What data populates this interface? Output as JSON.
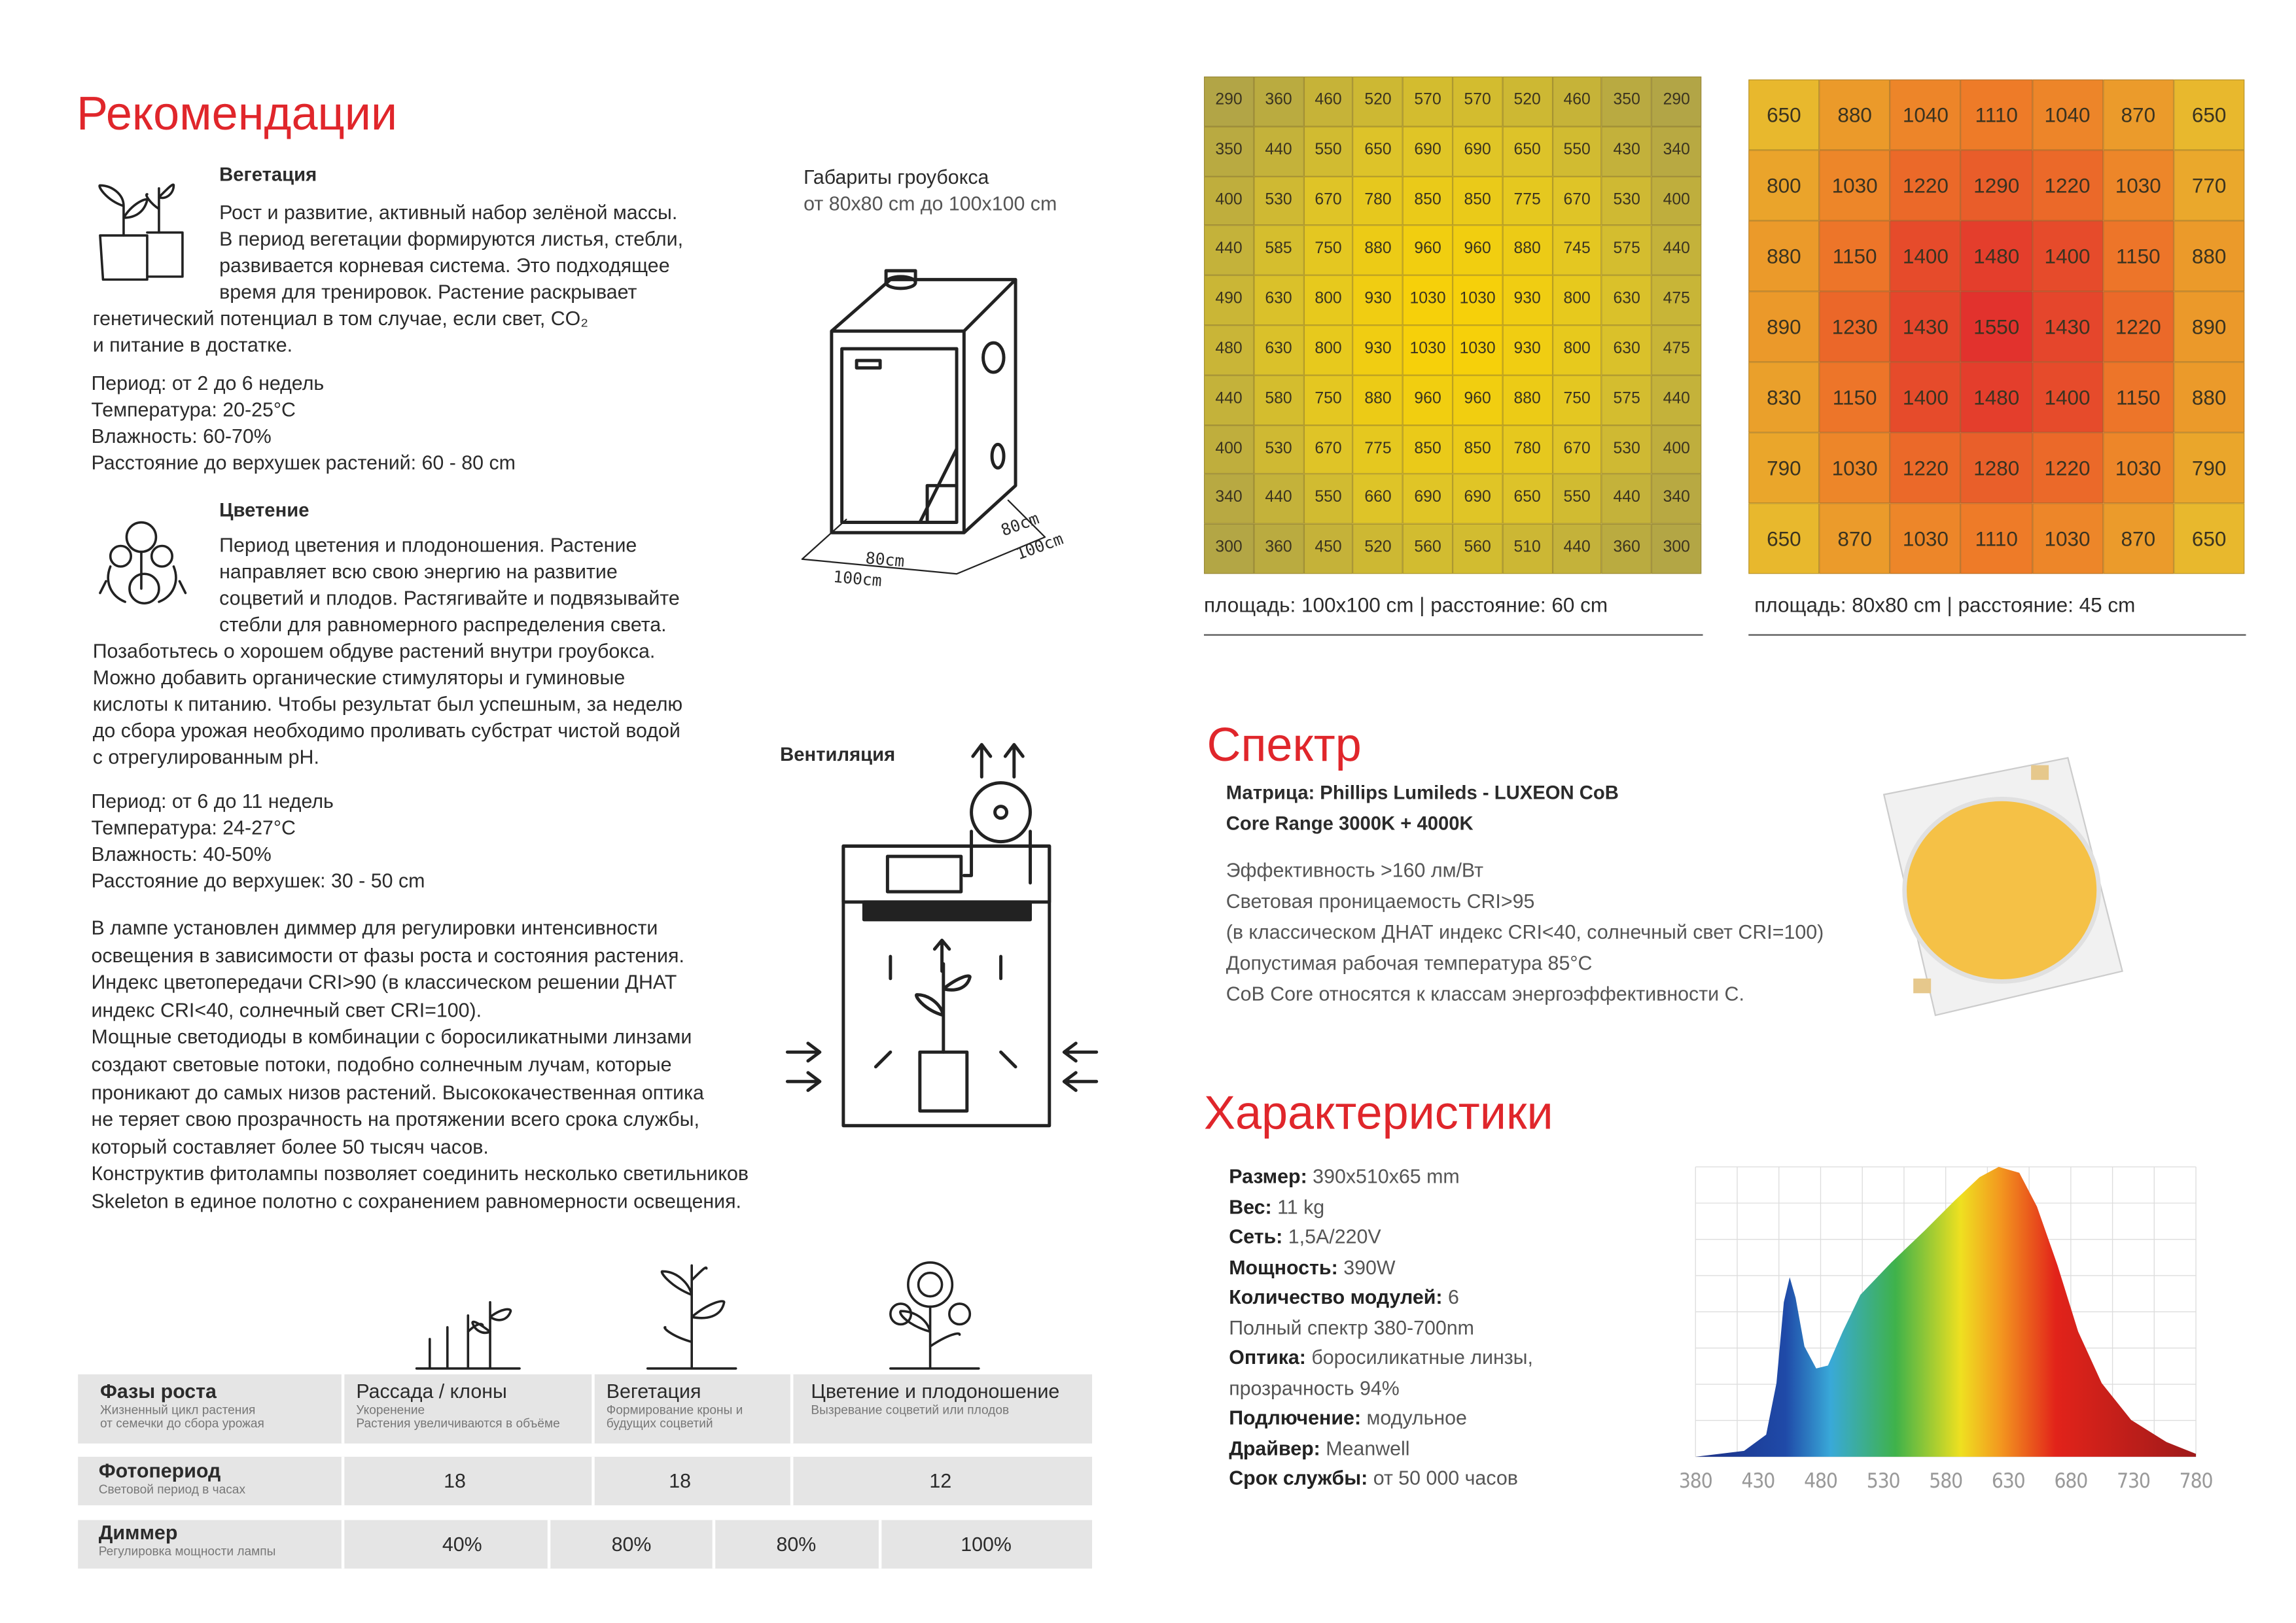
{
  "recommendations": {
    "title": "Рекомендации",
    "vegetation": {
      "heading": "Вегетация",
      "description": [
        "Рост и развитие, активный набор зелёной массы.",
        "В период вегетации формируются листья, стебли,",
        "развивается корневая система. Это подходящее",
        "время для тренировок. Растение раскрывает",
        "генетический потенциал в том случае, если свет, CO₂",
        "и питание в достатке."
      ],
      "params": [
        "Период: от 2 до 6 недель",
        "Температура: 20-25°C",
        "Влажность: 60-70%",
        "Расстояние до верхушек растений: 60 - 80 cm"
      ]
    },
    "flowering": {
      "heading": "Цветение",
      "description": [
        "Период цветения и плодоношения. Растение",
        "направляет всю свою энергию на развитие",
        "соцветий и плодов. Растягивайте и подвязывайте",
        "стебли для равномерного распределения света.",
        "Позаботьтесь о хорошем обдуве растений внутри гроубокса.",
        "Можно добавить органические стимуляторы и гуминовые",
        "кислоты к питанию. Чтобы результат был успешным, за неделю",
        "до сбора урожая необходимо проливать субстрат чистой водой",
        "с отрегулированным pH."
      ],
      "params": [
        "Период: от 6 до 11 недель",
        "Температура: 24-27°C",
        "Влажность: 40-50%",
        "Расстояние до верхушек: 30  - 50 cm"
      ]
    },
    "dimmer_text": [
      "В лампе установлен диммер для регулировки интенсивности",
      "освещения в зависимости от фазы роста и состояния растения.",
      "Индекс цветопередачи CRI>90 (в классическом решении ДНАТ",
      "индекс CRI<40, солнечный свет CRI=100).",
      "Мощные светодиоды в комбинации с боросиликатными линзами",
      "создают световые потоки, подобно солнечным лучам, которые",
      "проникают до самых низов растений. Высококачественная оптика",
      "не теряет свою прозрачность на протяжении всего срока службы,",
      "который составляет более 50 тысяч часов.",
      "Конструктив фитолампы позволяет соединить несколько светильников",
      "Skeleton в единое полотно с сохранением равномерности освещения."
    ]
  },
  "growbox": {
    "title": "Габариты гроубокса",
    "subtitle": "от 80x80 cm до 100x100 cm",
    "labels": [
      "80cm",
      "100cm",
      "80cm",
      "100cm"
    ]
  },
  "ventilation": {
    "title": "Вентиляция"
  },
  "par_maps": [
    {
      "rows": [
        [
          290,
          360,
          460,
          520,
          570,
          570,
          520,
          460,
          350,
          290
        ],
        [
          350,
          440,
          550,
          650,
          690,
          690,
          650,
          550,
          430,
          340
        ],
        [
          400,
          530,
          670,
          780,
          850,
          850,
          775,
          670,
          530,
          400
        ],
        [
          440,
          585,
          750,
          880,
          960,
          960,
          880,
          745,
          575,
          440
        ],
        [
          490,
          630,
          800,
          930,
          1030,
          1030,
          930,
          800,
          630,
          475
        ],
        [
          480,
          630,
          800,
          930,
          1030,
          1030,
          930,
          800,
          630,
          475
        ],
        [
          440,
          580,
          750,
          880,
          960,
          960,
          880,
          750,
          575,
          440
        ],
        [
          400,
          530,
          670,
          775,
          850,
          850,
          780,
          670,
          530,
          400
        ],
        [
          340,
          440,
          550,
          660,
          690,
          690,
          650,
          550,
          440,
          340
        ],
        [
          300,
          360,
          450,
          520,
          560,
          560,
          510,
          440,
          360,
          300
        ]
      ],
      "caption": "площадь: 100x100 cm | расстояние: 60 cm"
    },
    {
      "rows": [
        [
          650,
          880,
          1040,
          1110,
          1040,
          870,
          650
        ],
        [
          800,
          1030,
          1220,
          1290,
          1220,
          1030,
          770
        ],
        [
          880,
          1150,
          1400,
          1480,
          1400,
          1150,
          880
        ],
        [
          890,
          1230,
          1430,
          1550,
          1430,
          1220,
          890
        ],
        [
          830,
          1150,
          1400,
          1480,
          1400,
          1150,
          880
        ],
        [
          790,
          1030,
          1220,
          1280,
          1220,
          1030,
          790
        ],
        [
          650,
          870,
          1030,
          1110,
          1030,
          870,
          650
        ]
      ],
      "caption": "площадь: 80x80 cm | расстояние: 45 cm"
    }
  ],
  "spectrum": {
    "title": "Спектр",
    "matrix": [
      "Матрица:  Phillips Lumileds - LUXEON CoB",
      "Core Range 3000K + 4000K"
    ],
    "specs": [
      "Эффективность >160 лм/Вт",
      "Световая проницаемость CRI>95",
      "(в классическом ДНАТ индекс CRI<40, солнечный свет CRI=100)",
      "Допустимая рабочая температура 85°C",
      "CoB Core относятся к классам энергоэффективности С."
    ]
  },
  "characteristics": {
    "title": "Характеристики",
    "items": [
      {
        "label": "Размер:",
        "value": "390x510x65 mm"
      },
      {
        "label": "Вес:",
        "value": "11 kg"
      },
      {
        "label": "Сеть:",
        "value": "1,5A/220V"
      },
      {
        "label": "Мощность:",
        "value": "390W"
      },
      {
        "label": "Количество модулей:",
        "value": "6"
      },
      {
        "value": "Полный спектр 380-700nm"
      },
      {
        "label": "Оптика:",
        "value": "боросиликатные линзы,"
      },
      {
        "value": "прозрачность 94%"
      },
      {
        "label": "Подлючение:",
        "value": "модульное"
      },
      {
        "label": "Драйвер:",
        "value": "Meanwell"
      },
      {
        "label": "Срок службы:",
        "value": "от 50 000 часов"
      }
    ],
    "spectrum_ticks": [
      380,
      430,
      480,
      530,
      580,
      630,
      680,
      730,
      780
    ]
  },
  "phases_table": {
    "header": [
      {
        "title": "Фазы роста",
        "sub": [
          "Жизненный цикл растения",
          "от семечки до сбора урожая"
        ]
      },
      {
        "title": "Рассада / клоны",
        "sub": [
          "Укоренение",
          "Растения увеличиваются в объёме"
        ]
      },
      {
        "title": "Вегетация",
        "sub": [
          "Формирование кроны и",
          "будущих соцветий"
        ]
      },
      {
        "title": "Цветение и плодоношение",
        "sub": [
          "Вызревание соцветий или плодов"
        ]
      }
    ],
    "photoperiod": {
      "title": "Фотопериод",
      "sub": "Световой период в часах",
      "values": [
        "18",
        "18",
        "12"
      ]
    },
    "dimmer": {
      "title": "Диммер",
      "sub": "Регулировка мощности лампы",
      "values": [
        "40%",
        "80%",
        "80%",
        "100%"
      ]
    }
  }
}
